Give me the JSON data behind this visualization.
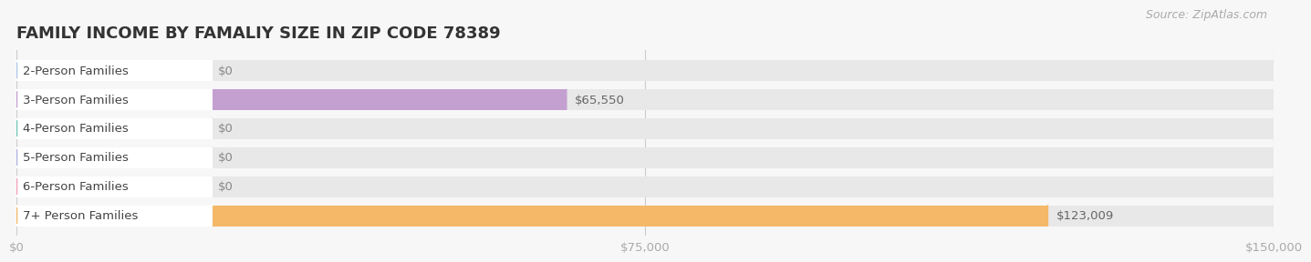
{
  "title": "FAMILY INCOME BY FAMALIY SIZE IN ZIP CODE 78389",
  "source": "Source: ZipAtlas.com",
  "categories": [
    "2-Person Families",
    "3-Person Families",
    "4-Person Families",
    "5-Person Families",
    "6-Person Families",
    "7+ Person Families"
  ],
  "values": [
    0,
    65550,
    0,
    0,
    0,
    123009
  ],
  "bar_colors": [
    "#aec8e8",
    "#c4a0d0",
    "#70c8b8",
    "#b0b4e0",
    "#f4a0b8",
    "#f4b868"
  ],
  "value_labels": [
    "$0",
    "$65,550",
    "$0",
    "$0",
    "$0",
    "$123,009"
  ],
  "xlim_max": 150000,
  "xticks": [
    0,
    75000,
    150000
  ],
  "xtick_labels": [
    "$0",
    "$75,000",
    "$150,000"
  ],
  "bg_color": "#f7f7f7",
  "row_bg_color": "#e8e8e8",
  "title_fontsize": 13,
  "bar_height": 0.72,
  "label_fontsize": 9.5,
  "tick_fontsize": 9.5,
  "source_fontsize": 9
}
